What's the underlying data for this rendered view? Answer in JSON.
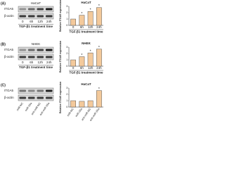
{
  "panel_labels": [
    "(A)",
    "(B)",
    "(C)"
  ],
  "blots": [
    {
      "cell_line": "HaCaT",
      "rows": [
        "ITGA5",
        "β-actin"
      ],
      "lanes": [
        "0",
        "6h",
        "12h",
        "24h"
      ],
      "xlabel": "TGF-β1 treatment time"
    },
    {
      "cell_line": "NHEK",
      "rows": [
        "ITGA5",
        "β-actin"
      ],
      "lanes": [
        "0",
        "6h",
        "12h",
        "24h"
      ],
      "xlabel": "TGF-β1 treatment time"
    },
    {
      "rows": [
        "ITGA5",
        "β-actin"
      ],
      "lanes": [
        "miR-NC",
        "miR-26a",
        "anti-miR-NC",
        "anti-miR-26a"
      ]
    }
  ],
  "chart_data": [
    {
      "type": "bar",
      "title": "HaCaT",
      "ylabel": "Relative ITGA5 expression",
      "xlabel": "TGF-β1 treatment time",
      "categories": [
        "0",
        "6h",
        "12h",
        "24h"
      ],
      "values": [
        1,
        1.6,
        2.2,
        2.8
      ],
      "color": "#f3c99b",
      "stars": [
        {
          "index": 1,
          "label": "*"
        },
        {
          "index": 2,
          "label": "*"
        },
        {
          "index": 3,
          "label": "*"
        }
      ],
      "ylim": [
        0,
        3
      ],
      "yticks": [
        0,
        1,
        2,
        3
      ]
    },
    {
      "type": "bar",
      "title": "NHEK",
      "ylabel": "Relative ITGA5 expression",
      "xlabel": "TGF-β1 treatment time",
      "categories": [
        "0",
        "6h",
        "12h",
        "24h"
      ],
      "values": [
        1,
        1.5,
        2.1,
        2.7
      ],
      "color": "#f3c99b",
      "stars": [
        {
          "index": 1,
          "label": "*"
        },
        {
          "index": 2,
          "label": "*"
        },
        {
          "index": 3,
          "label": "*"
        }
      ],
      "ylim": [
        0,
        3
      ],
      "yticks": [
        0,
        1,
        2,
        3
      ]
    },
    {
      "type": "bar",
      "title": "HaCaT",
      "ylabel": "Relative ITGA5 expression",
      "categories": [
        "miR-NC",
        "miR-26a",
        "anti-miR-NC",
        "anti-miR-26a"
      ],
      "values": [
        1,
        0.9,
        1,
        2.6
      ],
      "color": "#f3c99b",
      "stars": [
        {
          "index": 3,
          "label": "*"
        }
      ],
      "ylim": [
        0,
        3
      ],
      "yticks": [
        0,
        1,
        2,
        3
      ]
    }
  ]
}
